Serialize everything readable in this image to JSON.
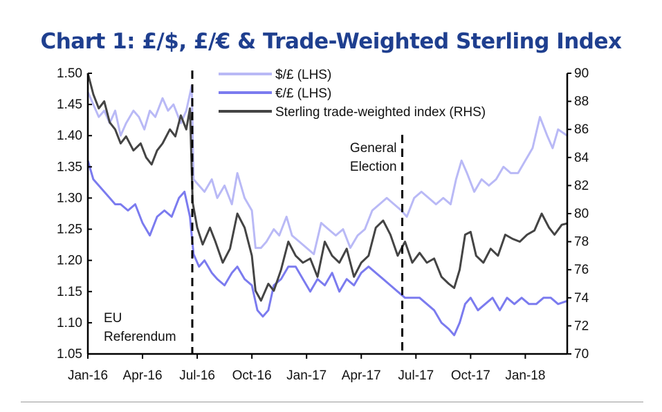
{
  "chart_data": {
    "type": "line",
    "title": "Chart 1: £/$, £/€ & Trade-Weighted Sterling Index",
    "x_unit": "months since Jan-16",
    "xlim": [
      0,
      26.3
    ],
    "x_ticks": [
      {
        "m": 0,
        "label": "Jan-16"
      },
      {
        "m": 3,
        "label": "Apr-16"
      },
      {
        "m": 6,
        "label": "Jul-16"
      },
      {
        "m": 9,
        "label": "Oct-16"
      },
      {
        "m": 12,
        "label": "Jan-17"
      },
      {
        "m": 15,
        "label": "Apr-17"
      },
      {
        "m": 18,
        "label": "Jul-17"
      },
      {
        "m": 21,
        "label": "Oct-17"
      },
      {
        "m": 24,
        "label": "Jan-18"
      }
    ],
    "ylim_left": [
      1.05,
      1.5
    ],
    "y_ticks_left": [
      "1.05",
      "1.10",
      "1.15",
      "1.20",
      "1.25",
      "1.30",
      "1.35",
      "1.40",
      "1.45",
      "1.50"
    ],
    "ylim_right": [
      70,
      90
    ],
    "y_ticks_right": [
      "70",
      "72",
      "74",
      "76",
      "78",
      "80",
      "82",
      "84",
      "86",
      "88",
      "90"
    ],
    "annotations": [
      {
        "m": 5.73,
        "label_lines": [
          "EU",
          "Referendum"
        ]
      },
      {
        "m": 17.25,
        "label_lines": [
          "General",
          "Election"
        ]
      }
    ],
    "legend_position": "top-center",
    "series": [
      {
        "name": "$/£ (LHS)",
        "axis": "left",
        "color": "#b9b9f6",
        "points": [
          [
            0,
            1.47
          ],
          [
            0.3,
            1.45
          ],
          [
            0.6,
            1.43
          ],
          [
            0.9,
            1.44
          ],
          [
            1.2,
            1.42
          ],
          [
            1.5,
            1.44
          ],
          [
            1.8,
            1.4
          ],
          [
            2.1,
            1.42
          ],
          [
            2.5,
            1.44
          ],
          [
            2.8,
            1.43
          ],
          [
            3.1,
            1.41
          ],
          [
            3.4,
            1.44
          ],
          [
            3.7,
            1.43
          ],
          [
            4.1,
            1.46
          ],
          [
            4.4,
            1.44
          ],
          [
            4.7,
            1.45
          ],
          [
            5.1,
            1.42
          ],
          [
            5.4,
            1.44
          ],
          [
            5.7,
            1.48
          ],
          [
            5.8,
            1.33
          ],
          [
            6.1,
            1.32
          ],
          [
            6.4,
            1.31
          ],
          [
            6.8,
            1.33
          ],
          [
            7.1,
            1.3
          ],
          [
            7.5,
            1.32
          ],
          [
            7.9,
            1.29
          ],
          [
            8.2,
            1.34
          ],
          [
            8.6,
            1.3
          ],
          [
            9.0,
            1.28
          ],
          [
            9.2,
            1.22
          ],
          [
            9.5,
            1.22
          ],
          [
            9.8,
            1.23
          ],
          [
            10.2,
            1.25
          ],
          [
            10.5,
            1.24
          ],
          [
            10.9,
            1.27
          ],
          [
            11.2,
            1.24
          ],
          [
            11.6,
            1.23
          ],
          [
            12.0,
            1.22
          ],
          [
            12.4,
            1.21
          ],
          [
            12.8,
            1.26
          ],
          [
            13.2,
            1.25
          ],
          [
            13.6,
            1.24
          ],
          [
            14.0,
            1.25
          ],
          [
            14.4,
            1.22
          ],
          [
            14.8,
            1.24
          ],
          [
            15.2,
            1.25
          ],
          [
            15.6,
            1.28
          ],
          [
            16.0,
            1.29
          ],
          [
            16.4,
            1.3
          ],
          [
            16.8,
            1.29
          ],
          [
            17.2,
            1.28
          ],
          [
            17.5,
            1.27
          ],
          [
            17.9,
            1.3
          ],
          [
            18.3,
            1.31
          ],
          [
            18.7,
            1.3
          ],
          [
            19.1,
            1.29
          ],
          [
            19.5,
            1.3
          ],
          [
            19.9,
            1.29
          ],
          [
            20.2,
            1.33
          ],
          [
            20.5,
            1.36
          ],
          [
            20.8,
            1.34
          ],
          [
            21.2,
            1.31
          ],
          [
            21.6,
            1.33
          ],
          [
            22.0,
            1.32
          ],
          [
            22.4,
            1.33
          ],
          [
            22.8,
            1.35
          ],
          [
            23.2,
            1.34
          ],
          [
            23.6,
            1.34
          ],
          [
            24.0,
            1.36
          ],
          [
            24.4,
            1.38
          ],
          [
            24.8,
            1.43
          ],
          [
            25.2,
            1.4
          ],
          [
            25.5,
            1.38
          ],
          [
            25.8,
            1.41
          ],
          [
            26.3,
            1.4
          ]
        ]
      },
      {
        "name": "€/£ (LHS)",
        "axis": "left",
        "color": "#7b7bef",
        "points": [
          [
            0,
            1.36
          ],
          [
            0.3,
            1.33
          ],
          [
            0.6,
            1.32
          ],
          [
            0.9,
            1.31
          ],
          [
            1.2,
            1.3
          ],
          [
            1.5,
            1.29
          ],
          [
            1.8,
            1.29
          ],
          [
            2.2,
            1.28
          ],
          [
            2.6,
            1.29
          ],
          [
            3.0,
            1.26
          ],
          [
            3.4,
            1.24
          ],
          [
            3.8,
            1.27
          ],
          [
            4.2,
            1.28
          ],
          [
            4.6,
            1.27
          ],
          [
            5.0,
            1.3
          ],
          [
            5.3,
            1.31
          ],
          [
            5.6,
            1.27
          ],
          [
            5.8,
            1.21
          ],
          [
            6.1,
            1.19
          ],
          [
            6.4,
            1.2
          ],
          [
            6.8,
            1.18
          ],
          [
            7.1,
            1.17
          ],
          [
            7.5,
            1.16
          ],
          [
            7.9,
            1.18
          ],
          [
            8.2,
            1.19
          ],
          [
            8.6,
            1.17
          ],
          [
            9.0,
            1.16
          ],
          [
            9.3,
            1.12
          ],
          [
            9.6,
            1.11
          ],
          [
            9.9,
            1.12
          ],
          [
            10.2,
            1.16
          ],
          [
            10.6,
            1.17
          ],
          [
            11.0,
            1.19
          ],
          [
            11.4,
            1.19
          ],
          [
            11.8,
            1.17
          ],
          [
            12.2,
            1.15
          ],
          [
            12.6,
            1.17
          ],
          [
            13.0,
            1.16
          ],
          [
            13.4,
            1.18
          ],
          [
            13.8,
            1.15
          ],
          [
            14.2,
            1.17
          ],
          [
            14.6,
            1.16
          ],
          [
            15.0,
            1.18
          ],
          [
            15.4,
            1.19
          ],
          [
            15.8,
            1.18
          ],
          [
            16.2,
            1.17
          ],
          [
            16.6,
            1.16
          ],
          [
            17.0,
            1.15
          ],
          [
            17.4,
            1.14
          ],
          [
            17.8,
            1.14
          ],
          [
            18.2,
            1.14
          ],
          [
            18.6,
            1.13
          ],
          [
            19.0,
            1.12
          ],
          [
            19.4,
            1.1
          ],
          [
            19.8,
            1.09
          ],
          [
            20.1,
            1.08
          ],
          [
            20.4,
            1.1
          ],
          [
            20.7,
            1.13
          ],
          [
            21.0,
            1.14
          ],
          [
            21.4,
            1.12
          ],
          [
            21.8,
            1.13
          ],
          [
            22.2,
            1.14
          ],
          [
            22.6,
            1.12
          ],
          [
            23.0,
            1.14
          ],
          [
            23.4,
            1.13
          ],
          [
            23.8,
            1.14
          ],
          [
            24.2,
            1.13
          ],
          [
            24.6,
            1.13
          ],
          [
            25.0,
            1.14
          ],
          [
            25.4,
            1.14
          ],
          [
            25.8,
            1.13
          ],
          [
            26.3,
            1.135
          ]
        ]
      },
      {
        "name": "Sterling trade-weighted index (RHS)",
        "axis": "right",
        "color": "#444444",
        "points": [
          [
            0,
            90
          ],
          [
            0.3,
            88.5
          ],
          [
            0.6,
            87.5
          ],
          [
            0.9,
            88
          ],
          [
            1.2,
            86.5
          ],
          [
            1.5,
            86
          ],
          [
            1.8,
            85
          ],
          [
            2.1,
            85.5
          ],
          [
            2.5,
            84.5
          ],
          [
            2.9,
            85
          ],
          [
            3.2,
            84
          ],
          [
            3.5,
            83.5
          ],
          [
            3.8,
            84.5
          ],
          [
            4.1,
            85
          ],
          [
            4.5,
            86
          ],
          [
            4.8,
            85.5
          ],
          [
            5.1,
            87
          ],
          [
            5.4,
            86
          ],
          [
            5.6,
            87.5
          ],
          [
            5.75,
            80.8
          ],
          [
            6.0,
            79
          ],
          [
            6.3,
            77.8
          ],
          [
            6.7,
            79
          ],
          [
            7.0,
            78
          ],
          [
            7.4,
            76.5
          ],
          [
            7.8,
            77.5
          ],
          [
            8.2,
            80
          ],
          [
            8.6,
            79
          ],
          [
            9.0,
            77
          ],
          [
            9.2,
            74.5
          ],
          [
            9.5,
            73.8
          ],
          [
            9.9,
            75
          ],
          [
            10.2,
            74.5
          ],
          [
            10.6,
            76
          ],
          [
            11.0,
            78
          ],
          [
            11.4,
            77
          ],
          [
            11.8,
            76.5
          ],
          [
            12.2,
            76.8
          ],
          [
            12.6,
            75.5
          ],
          [
            13.0,
            78
          ],
          [
            13.4,
            77
          ],
          [
            13.8,
            76.5
          ],
          [
            14.2,
            77.5
          ],
          [
            14.6,
            75.5
          ],
          [
            15.0,
            76.5
          ],
          [
            15.4,
            77
          ],
          [
            15.8,
            79
          ],
          [
            16.2,
            79.5
          ],
          [
            16.6,
            78.5
          ],
          [
            17.0,
            77
          ],
          [
            17.4,
            78
          ],
          [
            17.8,
            76.5
          ],
          [
            18.2,
            77.2
          ],
          [
            18.6,
            76.5
          ],
          [
            19.0,
            76.8
          ],
          [
            19.4,
            75.5
          ],
          [
            19.8,
            75
          ],
          [
            20.1,
            74.7
          ],
          [
            20.4,
            76
          ],
          [
            20.7,
            78.5
          ],
          [
            21.0,
            78.7
          ],
          [
            21.3,
            77
          ],
          [
            21.7,
            76.5
          ],
          [
            22.1,
            77.5
          ],
          [
            22.5,
            77
          ],
          [
            22.9,
            78.5
          ],
          [
            23.3,
            78.2
          ],
          [
            23.7,
            78
          ],
          [
            24.1,
            78.5
          ],
          [
            24.5,
            78.8
          ],
          [
            24.9,
            80
          ],
          [
            25.3,
            79
          ],
          [
            25.6,
            78.5
          ],
          [
            26.0,
            79.2
          ],
          [
            26.3,
            79.3
          ]
        ]
      }
    ]
  }
}
